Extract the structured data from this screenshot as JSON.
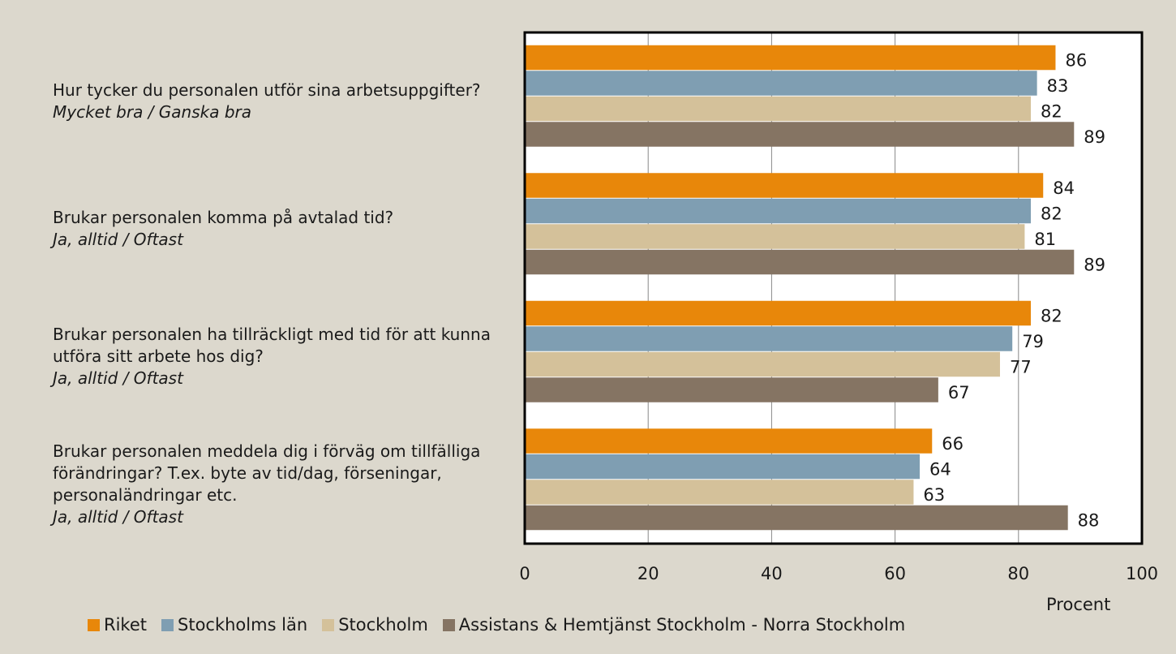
{
  "chart_data": {
    "type": "bar",
    "orientation": "horizontal",
    "categories": [
      {
        "question": "Hur tycker du personalen utför sina arbetsuppgifter?",
        "answer": "Mycket bra / Ganska bra"
      },
      {
        "question": "Brukar personalen komma på avtalad tid?",
        "answer": "Ja, alltid / Oftast"
      },
      {
        "question": "Brukar personalen ha tillräckligt med tid för att kunna utföra sitt arbete hos dig?",
        "answer": "Ja, alltid / Oftast"
      },
      {
        "question": "Brukar personalen meddela dig i förväg om tillfälliga förändringar? T.ex. byte av tid/dag, förseningar, personaländringar etc.",
        "answer": "Ja, alltid / Oftast"
      }
    ],
    "series": [
      {
        "name": "Riket",
        "color": "#e8870a",
        "values": [
          86,
          84,
          82,
          66
        ]
      },
      {
        "name": "Stockholms län",
        "color": "#7f9eb2",
        "values": [
          83,
          82,
          79,
          64
        ]
      },
      {
        "name": "Stockholm",
        "color": "#d4c19a",
        "values": [
          82,
          81,
          77,
          63
        ]
      },
      {
        "name": "Assistans & Hemtjänst Stockholm - Norra Stockholm",
        "color": "#857463",
        "values": [
          89,
          89,
          67,
          88
        ]
      }
    ],
    "xlabel": "Procent",
    "xlim": [
      0,
      100
    ],
    "xticks": [
      0,
      20,
      40,
      60,
      80,
      100
    ],
    "grid": true
  }
}
